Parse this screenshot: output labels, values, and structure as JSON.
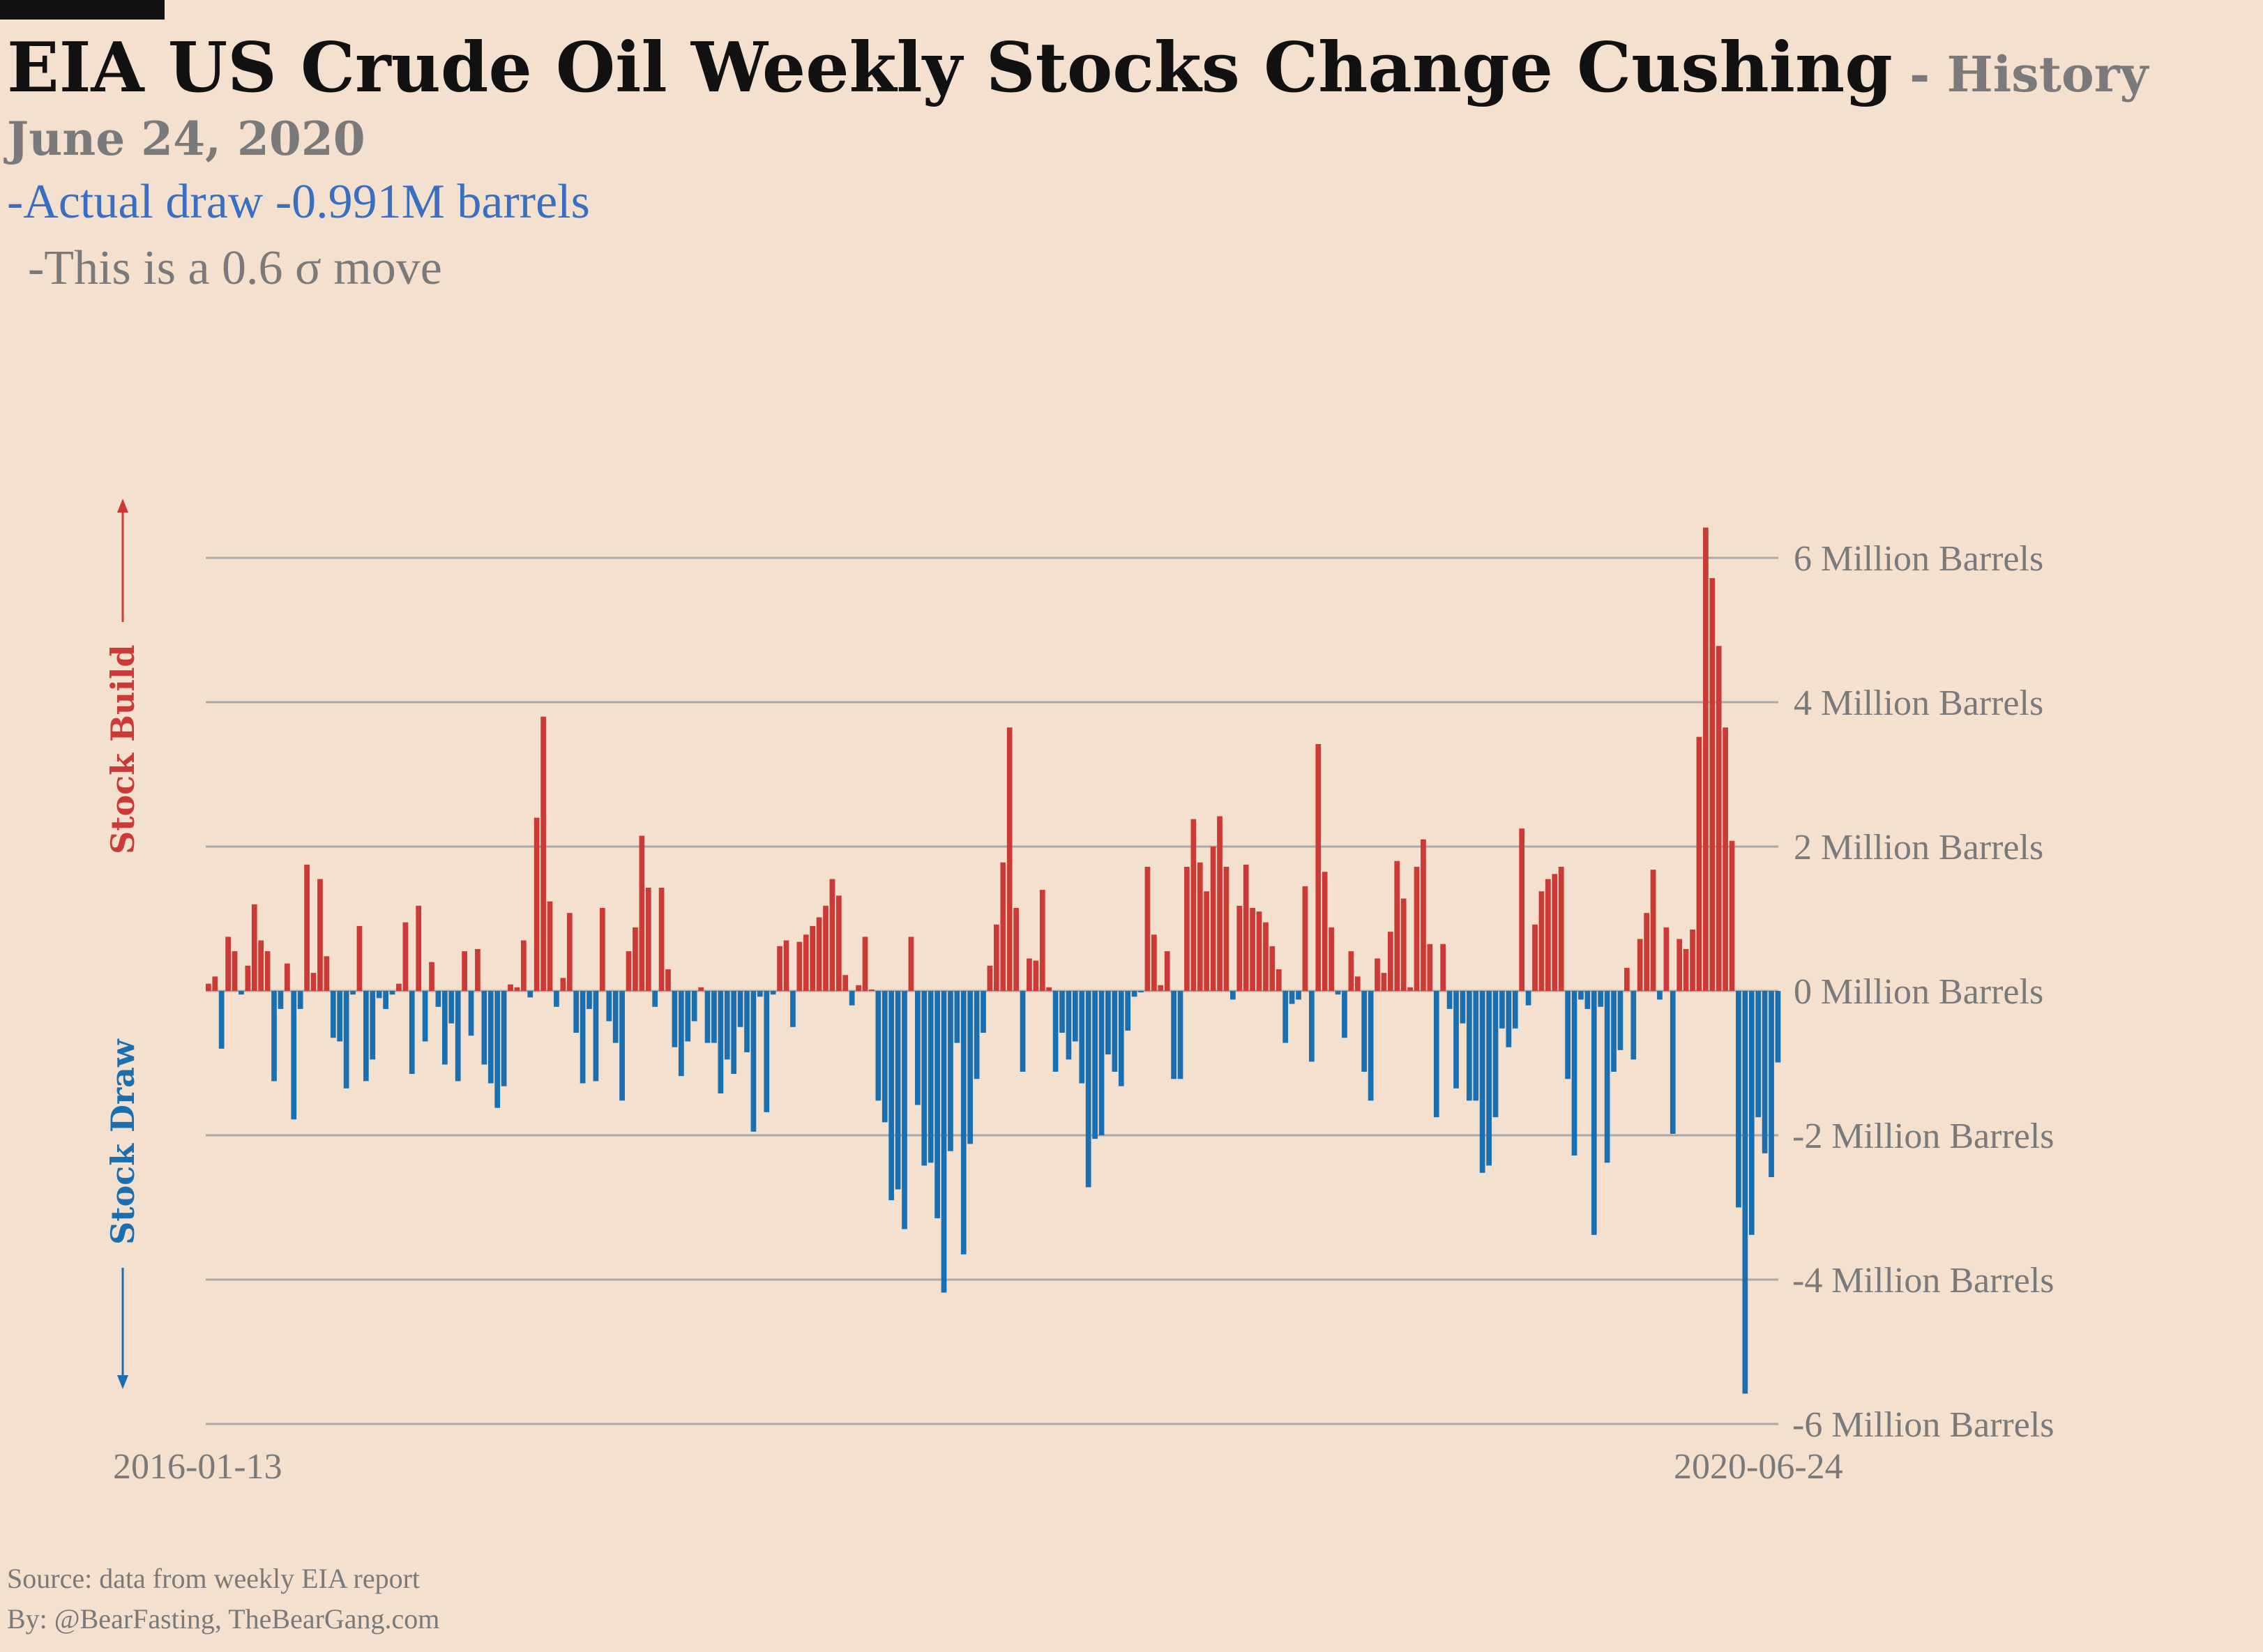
{
  "header": {
    "title": "EIA US Crude Oil Weekly Stocks Change Cushing",
    "title_sep": " - ",
    "title_suffix": "History",
    "date": "June 24, 2020",
    "actual_line": "-Actual draw -0.991M barrels",
    "sigma_line": "-This is a 0.6 σ move"
  },
  "footer": {
    "source": "Source: data from  weekly EIA report",
    "byline": "By: @BearFasting, TheBearGang.com"
  },
  "side_labels": {
    "build": "Stock Build",
    "draw": "Stock Draw"
  },
  "colors": {
    "build": "#cc3a36",
    "draw": "#1a6fb0",
    "grid": "#a9a9a9",
    "background": "#f3e0cf"
  },
  "chart_data": {
    "type": "bar",
    "x_start_label": "2016-01-13",
    "x_end_label": "2020-06-24",
    "ylim": [
      -6,
      6.4
    ],
    "yticks": [
      {
        "value": 6,
        "label": "6 Million Barrels"
      },
      {
        "value": 4,
        "label": "4 Million Barrels"
      },
      {
        "value": 2,
        "label": "2 Million Barrels"
      },
      {
        "value": 0,
        "label": "0 Million Barrels"
      },
      {
        "value": -2,
        "label": "-2 Million Barrels"
      },
      {
        "value": -4,
        "label": "-4 Million Barrels"
      },
      {
        "value": -6,
        "label": "-6 Million Barrels"
      }
    ],
    "grid": true,
    "values": [
      0.1,
      0.2,
      -0.8,
      0.75,
      0.55,
      -0.05,
      0.35,
      1.2,
      0.7,
      0.55,
      -1.25,
      -0.25,
      0.38,
      -1.78,
      -0.25,
      1.75,
      0.25,
      1.55,
      0.48,
      -0.65,
      -0.7,
      -1.35,
      -0.05,
      0.9,
      -1.25,
      -0.95,
      -0.1,
      -0.25,
      -0.05,
      0.1,
      0.95,
      -1.15,
      1.18,
      -0.7,
      0.4,
      -0.22,
      -1.02,
      -0.45,
      -1.25,
      0.55,
      -0.62,
      0.58,
      -1.02,
      -1.28,
      -1.62,
      -1.32,
      0.09,
      0.05,
      0.7,
      -0.09,
      2.4,
      3.8,
      1.24,
      -0.22,
      0.18,
      1.08,
      -0.58,
      -1.28,
      -0.25,
      -1.25,
      1.15,
      -0.42,
      -0.72,
      -1.52,
      0.55,
      0.88,
      2.15,
      1.43,
      -0.22,
      1.43,
      0.3,
      -0.78,
      -1.18,
      -0.7,
      -0.42,
      0.05,
      -0.72,
      -0.72,
      -1.42,
      -0.95,
      -1.15,
      -0.5,
      -0.85,
      -1.95,
      -0.08,
      -1.68,
      -0.05,
      0.62,
      0.7,
      -0.5,
      0.68,
      0.78,
      0.9,
      1.02,
      1.18,
      1.55,
      1.32,
      0.22,
      -0.2,
      0.08,
      0.75,
      0.02,
      -1.52,
      -1.82,
      -2.9,
      -2.75,
      -3.3,
      0.75,
      -1.58,
      -2.42,
      -2.38,
      -3.15,
      -4.18,
      -2.22,
      -0.72,
      -3.65,
      -2.12,
      -1.22,
      -0.58,
      0.35,
      0.92,
      1.78,
      3.65,
      1.15,
      -1.12,
      0.45,
      0.42,
      1.4,
      0.05,
      -1.12,
      -0.58,
      -0.95,
      -0.7,
      -1.28,
      -2.72,
      -2.05,
      -2.0,
      -0.88,
      -1.12,
      -1.32,
      -0.55,
      -0.08,
      -0.02,
      1.72,
      0.78,
      0.08,
      0.55,
      -1.22,
      -1.22,
      1.72,
      2.38,
      1.78,
      1.38,
      2.0,
      2.42,
      1.72,
      -0.12,
      1.18,
      1.75,
      1.15,
      1.1,
      0.95,
      0.62,
      0.3,
      -0.72,
      -0.18,
      -0.12,
      1.45,
      -0.98,
      3.42,
      1.65,
      0.88,
      -0.05,
      -0.65,
      0.55,
      0.2,
      -1.12,
      -1.52,
      0.45,
      0.25,
      0.82,
      1.8,
      1.28,
      0.05,
      1.72,
      2.1,
      0.65,
      -1.75,
      0.65,
      -0.25,
      -1.35,
      -0.45,
      -1.52,
      -1.52,
      -2.52,
      -2.42,
      -1.75,
      -0.52,
      -0.78,
      -0.52,
      2.25,
      -0.2,
      0.92,
      1.38,
      1.55,
      1.62,
      1.72,
      -1.22,
      -2.28,
      -0.12,
      -0.25,
      -3.38,
      -0.22,
      -2.38,
      -1.12,
      -0.82,
      0.32,
      -0.95,
      0.72,
      1.08,
      1.68,
      -0.12,
      0.88,
      -1.98,
      0.72,
      0.58,
      0.85,
      3.52,
      6.42,
      5.72,
      4.78,
      3.65,
      2.08,
      -3.0,
      -5.58,
      -3.38,
      -1.75,
      -2.25,
      -2.58,
      -0.991
    ]
  }
}
